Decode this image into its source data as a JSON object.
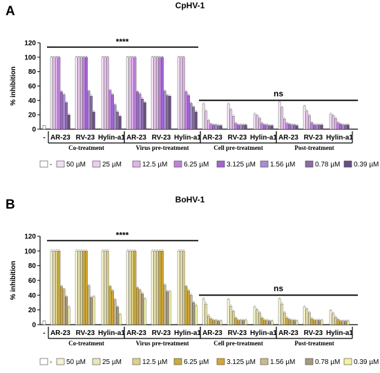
{
  "chart_data": [
    {
      "panel_label": "A",
      "title": "CpHV-1",
      "type": "bar",
      "ylabel": "% inhibition",
      "ylim": [
        0,
        120
      ],
      "yticks": [
        "0",
        "20",
        "40",
        "60",
        "80",
        "100",
        "120"
      ],
      "control_label": "-",
      "control_value": 5,
      "treatments": [
        "Co-treatment",
        "Virus pre-treatment",
        "Cell pre-treatment",
        "Post-treatment"
      ],
      "peptides": [
        "AR-23",
        "RV-23",
        "Hylin-a1"
      ],
      "significance": [
        {
          "label": "****",
          "span": "Co-treatment to Virus pre-treatment"
        },
        {
          "label": "ns",
          "span": "Cell pre-treatment to Post-treatment"
        }
      ],
      "series": [
        {
          "name": "50 µM",
          "color": "#f1e2f2"
        },
        {
          "name": "25 µM",
          "color": "#eccdf0"
        },
        {
          "name": "12.5 µM",
          "color": "#dfb4ea"
        },
        {
          "name": "6.25 µM",
          "color": "#c081e0"
        },
        {
          "name": "3.125 µM",
          "color": "#a266d4"
        },
        {
          "name": "1.56 µM",
          "color": "#a98bd6"
        },
        {
          "name": "0.78 µM",
          "color": "#8c6ba6"
        },
        {
          "name": "0.39 µM",
          "color": "#6a4d84"
        }
      ],
      "values": {
        "Co-treatment": {
          "AR-23": [
            100,
            100,
            100,
            100,
            52,
            48,
            37,
            20
          ],
          "RV-23": [
            100,
            100,
            100,
            100,
            100,
            53,
            46,
            24
          ],
          "Hylin-a1": [
            100,
            100,
            100,
            54,
            48,
            34,
            24,
            18
          ]
        },
        "Virus pre-treatment": {
          "AR-23": [
            100,
            100,
            100,
            100,
            52,
            49,
            42,
            37
          ],
          "RV-23": [
            100,
            100,
            100,
            100,
            100,
            53,
            47,
            46
          ],
          "Hylin-a1": [
            100,
            100,
            100,
            52,
            47,
            36,
            31,
            24
          ]
        },
        "Cell pre-treatment": {
          "AR-23": [
            35,
            25,
            12,
            7,
            6,
            6,
            5,
            5
          ],
          "RV-23": [
            35,
            27,
            18,
            8,
            6,
            6,
            6,
            6
          ],
          "Hylin-a1": [
            21,
            19,
            15,
            8,
            6,
            6,
            5,
            5
          ]
        },
        "Post-treatment": {
          "AR-23": [
            38,
            30,
            14,
            8,
            7,
            6,
            6,
            5
          ],
          "RV-23": [
            32,
            25,
            19,
            9,
            6,
            6,
            6,
            6
          ],
          "Hylin-a1": [
            21,
            19,
            15,
            9,
            7,
            6,
            6,
            6
          ]
        }
      }
    },
    {
      "panel_label": "B",
      "title": "BoHV-1",
      "type": "bar",
      "ylabel": "% inhibition",
      "ylim": [
        0,
        120
      ],
      "yticks": [
        "0",
        "20",
        "40",
        "60",
        "80",
        "100",
        "120"
      ],
      "control_label": "-",
      "control_value": 5,
      "treatments": [
        "Co-treatment",
        "Virus pre-treatment",
        "Cell pre-treatment",
        "Post-treatment"
      ],
      "peptides": [
        "AR-23",
        "RV-23",
        "Hylin-a1"
      ],
      "significance": [
        {
          "label": "****",
          "span": "Co-treatment to Virus pre-treatment"
        },
        {
          "label": "ns",
          "span": "Cell pre-treatment to Post-treatment"
        }
      ],
      "series": [
        {
          "name": "50 µM",
          "color": "#f5f3d0"
        },
        {
          "name": "25 µM",
          "color": "#ece6b5"
        },
        {
          "name": "12.5 µM",
          "color": "#e0d08a"
        },
        {
          "name": "6.25 µM",
          "color": "#c8ac3c"
        },
        {
          "name": "3.125 µM",
          "color": "#d6a535"
        },
        {
          "name": "1.56 µM",
          "color": "#cbb98c"
        },
        {
          "name": "0.78 µM",
          "color": "#a69a7a"
        },
        {
          "name": "0.39 µM",
          "color": "#f2f2a2"
        }
      ],
      "values": {
        "Co-treatment": {
          "AR-23": [
            100,
            100,
            100,
            100,
            52,
            48,
            38,
            24
          ],
          "RV-23": [
            100,
            100,
            100,
            100,
            100,
            53,
            37,
            38
          ],
          "Hylin-a1": [
            100,
            100,
            100,
            52,
            46,
            34,
            24,
            14
          ]
        },
        "Virus pre-treatment": {
          "AR-23": [
            100,
            100,
            100,
            100,
            50,
            47,
            42,
            35
          ],
          "RV-23": [
            100,
            100,
            100,
            100,
            100,
            54,
            45,
            45
          ],
          "Hylin-a1": [
            100,
            100,
            100,
            52,
            46,
            40,
            30,
            26
          ]
        },
        "Cell pre-treatment": {
          "AR-23": [
            35,
            28,
            12,
            8,
            6,
            6,
            5,
            5
          ],
          "RV-23": [
            34,
            25,
            18,
            9,
            6,
            6,
            6,
            6
          ],
          "Hylin-a1": [
            24,
            20,
            16,
            9,
            6,
            6,
            5,
            5
          ]
        },
        "Post-treatment": {
          "AR-23": [
            35,
            28,
            16,
            9,
            7,
            6,
            6,
            5
          ],
          "RV-23": [
            24,
            21,
            16,
            8,
            6,
            6,
            6,
            6
          ],
          "Hylin-a1": [
            19,
            15,
            10,
            7,
            5,
            5,
            5,
            5
          ]
        }
      }
    }
  ]
}
